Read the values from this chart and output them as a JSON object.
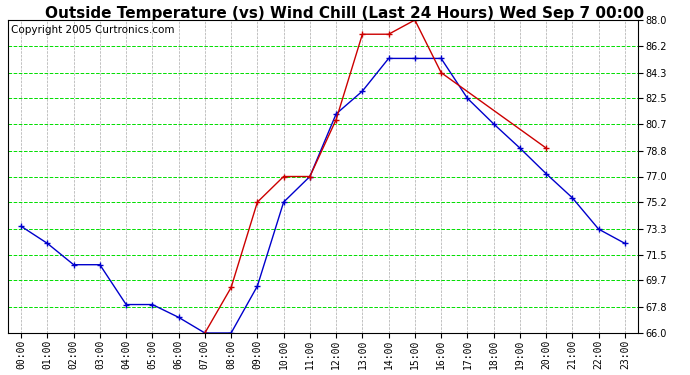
{
  "title": "Outside Temperature (vs) Wind Chill (Last 24 Hours) Wed Sep 7 00:00",
  "copyright": "Copyright 2005 Curtronics.com",
  "hours": [
    "00:00",
    "01:00",
    "02:00",
    "03:00",
    "04:00",
    "05:00",
    "06:00",
    "07:00",
    "08:00",
    "09:00",
    "10:00",
    "11:00",
    "12:00",
    "13:00",
    "14:00",
    "15:00",
    "16:00",
    "17:00",
    "18:00",
    "19:00",
    "20:00",
    "21:00",
    "22:00",
    "23:00"
  ],
  "outside_temp": [
    73.5,
    72.3,
    70.8,
    70.8,
    68.0,
    68.0,
    67.1,
    66.0,
    66.0,
    69.3,
    75.2,
    77.0,
    81.4,
    83.0,
    85.3,
    85.3,
    85.3,
    82.5,
    80.7,
    79.0,
    77.2,
    75.5,
    73.3,
    72.3
  ],
  "wind_chill": [
    null,
    null,
    null,
    null,
    null,
    null,
    null,
    66.0,
    69.2,
    75.2,
    77.0,
    77.0,
    81.0,
    87.0,
    87.0,
    88.0,
    84.3,
    null,
    null,
    null,
    79.0,
    null,
    null,
    null
  ],
  "ylim": [
    66.0,
    88.0
  ],
  "yticks": [
    66.0,
    67.8,
    69.7,
    71.5,
    73.3,
    75.2,
    77.0,
    78.8,
    80.7,
    82.5,
    84.3,
    86.2,
    88.0
  ],
  "bg_color": "#ffffff",
  "plot_bg": "#ffffff",
  "grid_color_h": "#00dd00",
  "grid_color_v": "#aaaaaa",
  "temp_color": "#0000cc",
  "wind_color": "#cc0000",
  "title_fontsize": 11,
  "copyright_fontsize": 7.5
}
